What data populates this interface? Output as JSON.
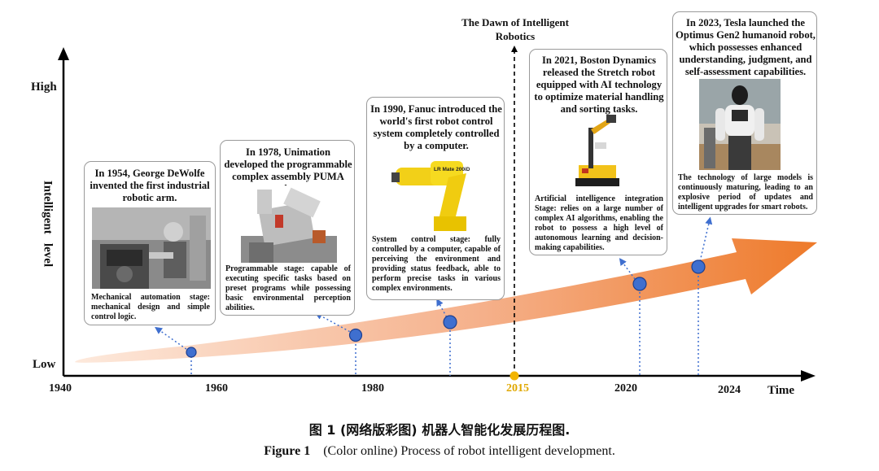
{
  "axes": {
    "y_high": "High",
    "y_low": "Low",
    "y_title": "Intelligent   level",
    "x_title": "Time",
    "ticks": [
      {
        "label": "1940",
        "highlight": false
      },
      {
        "label": "1960",
        "highlight": false
      },
      {
        "label": "1980",
        "highlight": false
      },
      {
        "label": "2015",
        "highlight": true
      },
      {
        "label": "2020",
        "highlight": false
      },
      {
        "label": "2024",
        "highlight": false
      }
    ]
  },
  "dawn_label": "The Dawn of Intelligent Robotics",
  "colors": {
    "arrow_light": "#fde9dc",
    "arrow_dark": "#ee7a2a",
    "dot": "#3f6fcf",
    "highlight": "#e0a800"
  },
  "cards": [
    {
      "title": "In 1954, George DeWolfe invented the first industrial robotic arm.",
      "desc": "Mechanical automation stage: mechanical design and simple control logic.",
      "icon": "industrial-arm-photo"
    },
    {
      "title": "In 1978, Unimation developed the programmable complex assembly PUMA robot.",
      "desc": "Programmable stage: capable of executing specific tasks based on preset programs while possessing basic environmental perception abilities.",
      "icon": "puma-robot-photo"
    },
    {
      "title": "In 1990, Fanuc introduced the world's first robot control system completely controlled by a computer.",
      "desc": "System control stage: fully controlled by a computer, capable of perceiving the environment and providing status feedback, able to perform precise tasks in various complex environments.",
      "icon": "fanuc-robot-photo",
      "photo_text": "LR Mate 200iD"
    },
    {
      "title": "In 2021, Boston Dynamics released the Stretch robot equipped with AI technology to optimize material handling and sorting tasks.",
      "desc": "Artificial intelligence integration Stage: relies on a large number of complex AI algorithms, enabling the robot to possess a high level of autonomous learning and decision-making capabilities.",
      "icon": "stretch-robot-photo"
    },
    {
      "title": "In 2023, Tesla launched the Optimus Gen2 humanoid robot, which possesses enhanced understanding, judgment, and self-assessment capabilities.",
      "desc": "The technology of large models is continuously maturing, leading to an explosive period of updates and intelligent upgrades for smart robots.",
      "icon": "optimus-robot-photo"
    }
  ],
  "caption_cn": "图 1 (网络版彩图) 机器人智能化发展历程图.",
  "caption_en_label": "Figure 1",
  "caption_en_text": "(Color online) Process of robot intelligent development."
}
